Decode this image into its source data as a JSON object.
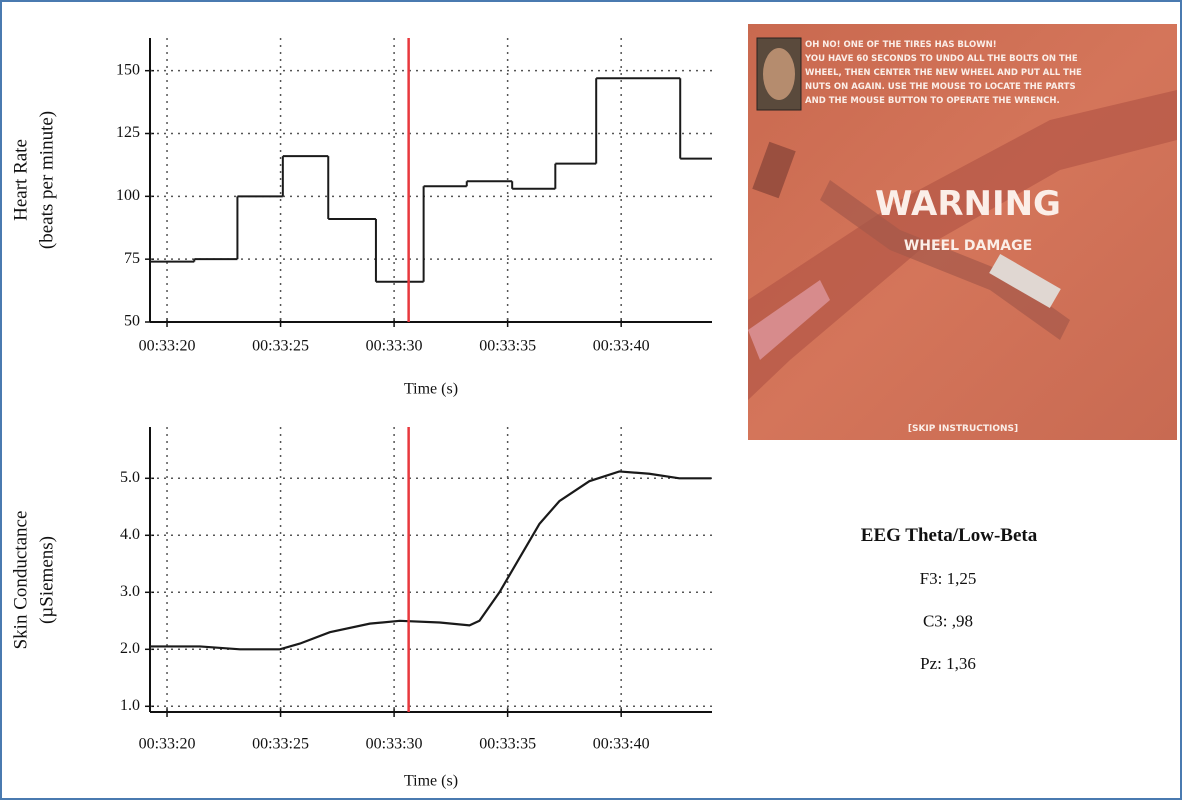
{
  "chart_data": [
    {
      "type": "line",
      "step": "post",
      "color": "#1a1a1a",
      "grid": true,
      "y_label": [
        "Heart Rate",
        "(beats per minute)"
      ],
      "x_label": "Time (s)",
      "xlim": [
        19.25,
        44.0
      ],
      "ylim": [
        50,
        163
      ],
      "xticks": [
        {
          "value": 20,
          "label": "00:33:20"
        },
        {
          "value": 25,
          "label": "00:33:25"
        },
        {
          "value": 30,
          "label": "00:33:30"
        },
        {
          "value": 35,
          "label": "00:33:35"
        },
        {
          "value": 40,
          "label": "00:33:40"
        }
      ],
      "yticks": [
        50,
        75,
        100,
        125,
        150
      ],
      "x": [
        19.25,
        21.2,
        23.1,
        25.1,
        27.1,
        29.2,
        31.3,
        33.2,
        35.2,
        37.1,
        38.9,
        42.6
      ],
      "values": [
        74,
        75,
        100,
        116,
        91,
        66,
        104,
        106,
        103,
        113,
        147,
        115
      ],
      "marker": {
        "x": 30.64,
        "color": "#e8383d"
      }
    },
    {
      "type": "line",
      "color": "#1a1a1a",
      "grid": true,
      "y_label": [
        "Skin Conductance",
        "(µSiemens)"
      ],
      "x_label": "Time (s)",
      "xlim": [
        19.25,
        44.0
      ],
      "ylim": [
        0.9,
        5.9
      ],
      "xticks": [
        {
          "value": 20,
          "label": "00:33:20"
        },
        {
          "value": 25,
          "label": "00:33:25"
        },
        {
          "value": 30,
          "label": "00:33:30"
        },
        {
          "value": 35,
          "label": "00:33:35"
        },
        {
          "value": 40,
          "label": "00:33:40"
        }
      ],
      "yticks": [
        {
          "value": 1,
          "label": "1.0"
        },
        {
          "value": 2,
          "label": "2.0"
        },
        {
          "value": 3,
          "label": "3.0"
        },
        {
          "value": 4,
          "label": "4.0"
        },
        {
          "value": 5,
          "label": "5.0"
        }
      ],
      "x": [
        19.25,
        21.45,
        23.21,
        24.97,
        25.85,
        27.17,
        28.93,
        30.25,
        32.01,
        33.32,
        33.76,
        34.64,
        35.52,
        36.4,
        37.28,
        38.6,
        39.92,
        41.24,
        42.56,
        43.97
      ],
      "values": [
        2.05,
        2.05,
        2.0,
        2.0,
        2.1,
        2.3,
        2.45,
        2.5,
        2.47,
        2.42,
        2.5,
        3.0,
        3.6,
        4.2,
        4.6,
        4.95,
        5.12,
        5.08,
        5.0,
        5.0
      ],
      "marker": {
        "x": 30.64,
        "color": "#e8383d"
      }
    }
  ],
  "game_screenshot": {
    "message": [
      "OH NO! ONE OF THE TIRES HAS BLOWN!",
      "YOU HAVE 60 SECONDS TO UNDO ALL THE BOLTS ON THE",
      "WHEEL, THEN CENTER THE NEW WHEEL AND PUT ALL THE",
      "NUTS ON AGAIN. USE THE MOUSE TO LOCATE THE PARTS",
      "AND THE MOUSE BUTTON TO OPERATE THE WRENCH."
    ],
    "warning": "WARNING",
    "subtitle": "WHEEL DAMAGE",
    "skip": "[SKIP INSTRUCTIONS]"
  },
  "eeg": {
    "title": "EEG Theta/Low-Beta",
    "items": [
      "F3: 1,25",
      "C3: ,98",
      "Pz: 1,36"
    ]
  }
}
